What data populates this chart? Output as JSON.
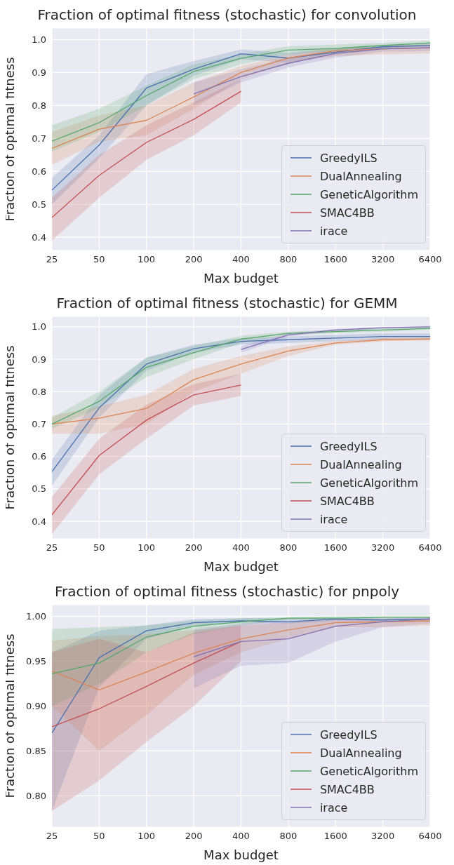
{
  "chart_data": [
    {
      "type": "line",
      "title": "Fraction of optimal fitness (stochastic) for convolution",
      "xlabel": "Max budget",
      "ylabel": "Fraction of optimal fitness",
      "categories": [
        "25",
        "50",
        "100",
        "200",
        "400",
        "800",
        "1600",
        "3200",
        "6400"
      ],
      "ylim": [
        0.36,
        1.035
      ],
      "yticks": [
        0.4,
        0.5,
        0.6,
        0.7,
        0.8,
        0.9,
        {
          "value": 1.0,
          "label": "1.0"
        }
      ],
      "grid": true,
      "legend": "bottom right",
      "series": [
        {
          "name": "GreedyILS",
          "color": "#4c72b0",
          "values": [
            0.543,
            0.68,
            0.853,
            0.91,
            0.957,
            0.944,
            0.962,
            0.978,
            0.982
          ],
          "lower": [
            0.5,
            0.64,
            0.8,
            0.89,
            0.94,
            0.93,
            0.955,
            0.97,
            0.975
          ],
          "upper": [
            0.58,
            0.71,
            0.895,
            0.935,
            0.97,
            0.96,
            0.975,
            0.985,
            0.99
          ]
        },
        {
          "name": "DualAnnealing",
          "color": "#dd8452",
          "values": [
            0.67,
            0.728,
            0.755,
            0.826,
            0.9,
            0.944,
            0.966,
            0.972,
            0.975
          ],
          "lower": [
            0.62,
            0.69,
            0.71,
            0.79,
            0.88,
            0.93,
            0.95,
            0.955,
            0.958
          ],
          "upper": [
            0.72,
            0.77,
            0.8,
            0.87,
            0.92,
            0.955,
            0.975,
            0.983,
            0.985
          ]
        },
        {
          "name": "GeneticAlgorithm",
          "color": "#55a868",
          "values": [
            0.692,
            0.748,
            0.83,
            0.903,
            0.943,
            0.968,
            0.973,
            0.982,
            0.99
          ],
          "lower": [
            0.66,
            0.72,
            0.8,
            0.88,
            0.925,
            0.955,
            0.965,
            0.975,
            0.985
          ],
          "upper": [
            0.74,
            0.79,
            0.86,
            0.925,
            0.955,
            0.98,
            0.985,
            0.99,
            0.997
          ]
        },
        {
          "name": "SMAC4BB",
          "color": "#c44e52",
          "values": [
            0.46,
            0.588,
            0.688,
            0.758,
            0.843,
            null,
            null,
            null,
            null
          ],
          "lower": [
            0.39,
            0.52,
            0.635,
            0.71,
            0.81,
            null,
            null,
            null,
            null
          ],
          "upper": [
            0.52,
            0.65,
            0.74,
            0.81,
            0.88,
            null,
            null,
            null,
            null
          ]
        },
        {
          "name": "irace",
          "color": "#8172b3",
          "values": [
            null,
            null,
            null,
            0.835,
            0.888,
            0.928,
            0.958,
            0.972,
            0.975
          ],
          "lower": [
            null,
            null,
            null,
            0.8,
            0.87,
            0.915,
            0.945,
            0.963,
            0.965
          ],
          "upper": [
            null,
            null,
            null,
            0.87,
            0.91,
            0.945,
            0.97,
            0.98,
            0.985
          ]
        }
      ]
    },
    {
      "type": "line",
      "title": "Fraction of optimal fitness (stochastic) for GEMM",
      "xlabel": "Max budget",
      "ylabel": "Fraction of optimal fitness",
      "categories": [
        "25",
        "50",
        "100",
        "200",
        "400",
        "800",
        "1600",
        "3200",
        "6400"
      ],
      "ylim": [
        0.346,
        1.032
      ],
      "yticks": [
        0.4,
        0.5,
        0.6,
        0.7,
        0.8,
        0.9,
        {
          "value": 1.0,
          "label": "1.0"
        }
      ],
      "grid": true,
      "legend": "bottom right",
      "series": [
        {
          "name": "GreedyILS",
          "color": "#4c72b0",
          "values": [
            0.553,
            0.75,
            0.885,
            0.932,
            0.955,
            0.96,
            0.965,
            0.97,
            0.97
          ],
          "lower": [
            0.51,
            0.72,
            0.865,
            0.92,
            0.945,
            0.95,
            0.955,
            0.96,
            0.96
          ],
          "upper": [
            0.59,
            0.79,
            0.905,
            0.945,
            0.965,
            0.97,
            0.975,
            0.98,
            0.98
          ]
        },
        {
          "name": "DualAnnealing",
          "color": "#dd8452",
          "values": [
            0.7,
            0.718,
            0.748,
            0.837,
            0.885,
            0.925,
            0.95,
            0.96,
            0.962
          ],
          "lower": [
            0.67,
            0.67,
            0.7,
            0.8,
            0.855,
            0.91,
            0.945,
            0.955,
            0.958
          ],
          "upper": [
            0.725,
            0.755,
            0.79,
            0.87,
            0.91,
            0.94,
            0.955,
            0.965,
            0.967
          ]
        },
        {
          "name": "GeneticAlgorithm",
          "color": "#55a868",
          "values": [
            0.7,
            0.77,
            0.875,
            0.92,
            0.962,
            0.98,
            0.985,
            0.99,
            0.995
          ],
          "lower": [
            0.685,
            0.75,
            0.845,
            0.9,
            0.95,
            0.975,
            0.98,
            0.985,
            0.99
          ],
          "upper": [
            0.72,
            0.8,
            0.905,
            0.94,
            0.972,
            0.985,
            0.99,
            0.995,
            0.998
          ]
        },
        {
          "name": "SMAC4BB",
          "color": "#c44e52",
          "values": [
            0.42,
            0.603,
            0.712,
            0.79,
            0.82,
            null,
            null,
            null,
            null
          ],
          "lower": [
            0.36,
            0.545,
            0.655,
            0.757,
            0.787,
            null,
            null,
            null,
            null
          ],
          "upper": [
            0.475,
            0.655,
            0.76,
            0.823,
            0.855,
            null,
            null,
            null,
            null
          ]
        },
        {
          "name": "irace",
          "color": "#8172b3",
          "values": [
            null,
            null,
            null,
            null,
            0.93,
            0.975,
            0.99,
            0.997,
            1.0
          ],
          "lower": [
            null,
            null,
            null,
            null,
            0.92,
            0.97,
            0.985,
            0.994,
            0.997
          ],
          "upper": [
            null,
            null,
            null,
            null,
            0.94,
            0.98,
            0.993,
            0.999,
            1.002
          ]
        }
      ]
    },
    {
      "type": "line",
      "title": "Fraction of optimal fitness (stochastic) for pnpoly",
      "xlabel": "Max budget",
      "ylabel": "Fraction of optimal fitness",
      "categories": [
        "25",
        "50",
        "100",
        "200",
        "400",
        "800",
        "1600",
        "3200",
        "6400"
      ],
      "ylim": [
        0.765,
        1.013
      ],
      "yticks": [
        {
          "value": 0.8,
          "label": "0.80"
        },
        {
          "value": 0.85,
          "label": "0.85"
        },
        {
          "value": 0.9,
          "label": "0.90"
        },
        {
          "value": 0.95,
          "label": "0.95"
        },
        {
          "value": 1.0,
          "label": "1.00"
        }
      ],
      "grid": true,
      "legend": "bottom right",
      "series": [
        {
          "name": "GreedyILS",
          "color": "#4c72b0",
          "values": [
            0.87,
            0.954,
            0.984,
            0.993,
            0.995,
            0.994,
            0.997,
            0.996,
            0.997
          ],
          "lower": [
            0.783,
            0.921,
            0.975,
            0.99,
            0.993,
            0.992,
            0.995,
            0.994,
            0.995
          ],
          "upper": [
            0.96,
            0.984,
            0.99,
            0.997,
            0.998,
            0.998,
            0.998,
            0.998,
            0.998
          ]
        },
        {
          "name": "DualAnnealing",
          "color": "#dd8452",
          "values": [
            0.939,
            0.918,
            0.938,
            0.959,
            0.975,
            0.985,
            0.993,
            0.994,
            0.995
          ],
          "lower": [
            0.9,
            0.85,
            0.89,
            0.935,
            0.96,
            0.975,
            0.988,
            0.988,
            0.99
          ],
          "upper": [
            0.973,
            0.978,
            0.98,
            0.985,
            0.99,
            0.993,
            0.997,
            0.997,
            0.998
          ]
        },
        {
          "name": "GeneticAlgorithm",
          "color": "#55a868",
          "values": [
            0.936,
            0.948,
            0.977,
            0.989,
            0.994,
            0.998,
            0.998,
            0.999,
            0.999
          ],
          "lower": [
            0.9,
            0.925,
            0.96,
            0.98,
            0.99,
            0.996,
            0.997,
            0.998,
            0.998
          ],
          "upper": [
            0.986,
            0.988,
            0.99,
            0.995,
            0.998,
            0.999,
            1.0,
            1.0,
            1.0
          ]
        },
        {
          "name": "SMAC4BB",
          "color": "#c44e52",
          "values": [
            0.877,
            0.897,
            0.922,
            0.948,
            0.972,
            null,
            null,
            null,
            null
          ],
          "lower": [
            0.783,
            0.817,
            0.86,
            0.9,
            0.95,
            null,
            null,
            null,
            null
          ],
          "upper": [
            0.96,
            0.975,
            0.96,
            0.982,
            0.99,
            null,
            null,
            null,
            null
          ]
        },
        {
          "name": "irace",
          "color": "#8172b3",
          "values": [
            null,
            null,
            null,
            0.955,
            0.972,
            0.975,
            0.989,
            0.994,
            0.997
          ],
          "lower": [
            null,
            null,
            null,
            0.92,
            0.945,
            0.948,
            0.972,
            0.988,
            0.992
          ],
          "upper": [
            null,
            null,
            null,
            0.985,
            0.992,
            0.995,
            0.997,
            0.998,
            0.999
          ]
        }
      ]
    }
  ]
}
